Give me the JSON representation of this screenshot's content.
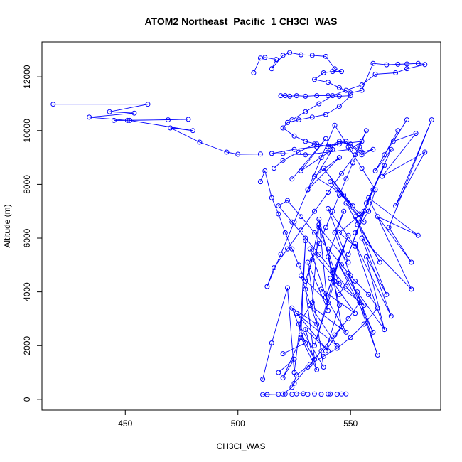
{
  "chart_data": {
    "type": "line",
    "title": "ATOM2 Northeast_Pacific_1 CH3Cl_WAS",
    "xlabel": "CH3Cl_WAS",
    "ylabel": "Altitude (m)",
    "xlim": [
      413,
      590
    ],
    "ylim": [
      -400,
      13300
    ],
    "xticks": [
      450,
      500,
      550
    ],
    "yticks": [
      0,
      2000,
      4000,
      6000,
      8000,
      10000,
      12000
    ],
    "grid": false,
    "legend": "none",
    "marker": "open-circle",
    "color": "#0000ff",
    "series": [
      {
        "x": [
          511,
          513,
          518,
          521,
          524,
          526,
          529,
          531,
          534,
          537,
          540,
          541,
          544,
          546,
          548
        ],
        "y": [
          180,
          180,
          190,
          200,
          190,
          200,
          210,
          190,
          200,
          190,
          200,
          200,
          190,
          200,
          200
        ]
      },
      {
        "x": [
          511,
          515,
          522,
          525,
          528,
          530,
          528,
          534,
          530,
          536,
          533,
          527,
          538,
          531,
          540,
          536,
          543,
          534,
          546,
          539,
          549,
          542,
          546,
          539,
          545,
          540,
          547,
          543,
          550,
          545
        ],
        "y": [
          750,
          2100,
          4150,
          1000,
          3100,
          5900,
          2400,
          1500,
          4100,
          6500,
          3600,
          2800,
          1200,
          5100,
          3300,
          6700,
          4400,
          2000,
          5500,
          3800,
          6100,
          4700,
          2700,
          1800,
          3500,
          5300,
          7000,
          6200,
          4600,
          3900
        ]
      },
      {
        "x": [
          518,
          525,
          520,
          528,
          535,
          530,
          540,
          526,
          544,
          532,
          548,
          537,
          552,
          541,
          556,
          545,
          560,
          549,
          562,
          553,
          565,
          557,
          566,
          552,
          563,
          548,
          556,
          544,
          554,
          541,
          551,
          538,
          547,
          534,
          545,
          531,
          542,
          528,
          539,
          524
        ],
        "y": [
          1000,
          1500,
          800,
          2300,
          1100,
          2600,
          1800,
          3200,
          2000,
          3500,
          2500,
          4100,
          3200,
          4500,
          3500,
          5000,
          2500,
          4700,
          1650,
          4000,
          2600,
          5300,
          3900,
          6800,
          5100,
          7300,
          6600,
          7800,
          6900,
          8100,
          7200,
          8600,
          7600,
          8300,
          9000,
          7800,
          9300,
          8500,
          9700,
          8200
        ]
      },
      {
        "x": [
          520,
          530,
          524,
          535,
          528,
          540,
          532,
          545,
          536,
          549,
          540,
          552,
          545,
          556,
          549,
          560,
          553,
          565,
          557,
          568,
          561,
          571,
          565,
          575,
          569,
          579,
          564,
          583,
          570,
          586,
          567,
          577,
          562,
          580,
          558,
          577,
          555,
          568,
          552,
          565
        ],
        "y": [
          1700,
          2100,
          3400,
          2800,
          4600,
          3600,
          5600,
          4300,
          6400,
          5100,
          7100,
          5700,
          6200,
          7000,
          5400,
          7800,
          6500,
          8700,
          7300,
          9300,
          8500,
          10000,
          9100,
          10400,
          9600,
          9900,
          8300,
          9200,
          7200,
          10400,
          6400,
          5100,
          6800,
          6100,
          7500,
          4100,
          6000,
          3100,
          5800,
          2600
        ]
      },
      {
        "x": [
          510,
          512,
          515,
          518,
          521,
          524,
          527,
          530,
          533,
          536,
          539,
          542,
          545,
          548,
          551,
          554,
          557,
          552,
          546,
          540,
          534,
          528,
          522,
          516,
          513,
          519,
          525,
          531,
          537,
          543,
          549,
          555,
          561,
          558,
          552
        ],
        "y": [
          8100,
          8500,
          7500,
          6900,
          6200,
          5600,
          5000,
          4400,
          5200,
          5800,
          6400,
          7000,
          7600,
          8200,
          8800,
          9400,
          10000,
          9100,
          8400,
          7700,
          7000,
          6300,
          5600,
          4900,
          4200,
          5400,
          6600,
          7800,
          9000,
          10200,
          9400,
          8600,
          7800,
          7000,
          6200
        ]
      },
      {
        "x": [
          418,
          460,
          443,
          454,
          434,
          451,
          445,
          469,
          478,
          452,
          480,
          470,
          483,
          495,
          500,
          510,
          520,
          530,
          540,
          550,
          555,
          545,
          535,
          525,
          515
        ],
        "y": [
          10980,
          10980,
          10700,
          10650,
          10500,
          10380,
          10380,
          10400,
          10420,
          10380,
          10000,
          10100,
          9570,
          9200,
          9120,
          9130,
          9150,
          9100,
          9200,
          9300,
          9600,
          9500,
          9400,
          9300,
          9150
        ]
      },
      {
        "x": [
          519,
          521,
          523,
          526,
          530,
          535,
          540,
          545,
          550,
          545,
          539,
          533,
          527,
          522,
          520,
          525,
          530,
          535,
          540,
          545,
          550,
          555,
          560,
          555,
          548,
          541,
          534,
          527,
          520,
          516
        ],
        "y": [
          11300,
          11300,
          11280,
          11300,
          11280,
          11300,
          11300,
          11280,
          11300,
          10900,
          10600,
          10500,
          10400,
          10300,
          10100,
          9800,
          9600,
          9500,
          9400,
          9600,
          9500,
          9200,
          9300,
          9100,
          9600,
          9400,
          9500,
          9200,
          8900,
          8600
        ]
      },
      {
        "x": [
          507,
          510,
          512,
          517,
          515,
          520,
          523,
          528,
          533,
          539,
          543,
          546,
          542,
          538,
          534,
          540,
          545,
          550,
          555,
          560,
          566,
          571,
          575,
          580,
          583,
          575,
          570,
          561,
          555,
          548,
          542,
          536,
          530,
          524
        ],
        "y": [
          12150,
          12700,
          12720,
          12650,
          12300,
          12800,
          12900,
          12820,
          12800,
          12760,
          12300,
          12200,
          12200,
          12150,
          11900,
          11800,
          11600,
          11400,
          11500,
          12500,
          12450,
          12470,
          12480,
          12500,
          12460,
          12300,
          12150,
          12100,
          11700,
          11500,
          11300,
          11000,
          10700,
          10400
        ]
      },
      {
        "x": [
          520,
          524,
          526,
          532,
          538,
          544,
          550,
          556,
          562,
          558,
          552,
          546,
          540,
          534,
          528,
          522,
          518,
          524,
          530,
          536,
          542,
          548,
          554,
          549,
          543,
          537,
          531,
          525
        ],
        "y": [
          200,
          450,
          900,
          1300,
          1600,
          1900,
          2300,
          2800,
          3400,
          3900,
          4400,
          5000,
          5600,
          6200,
          6800,
          7400,
          7200,
          6600,
          6000,
          5400,
          4800,
          4200,
          3600,
          3000,
          2400,
          1800,
          1200,
          600
        ]
      }
    ]
  }
}
